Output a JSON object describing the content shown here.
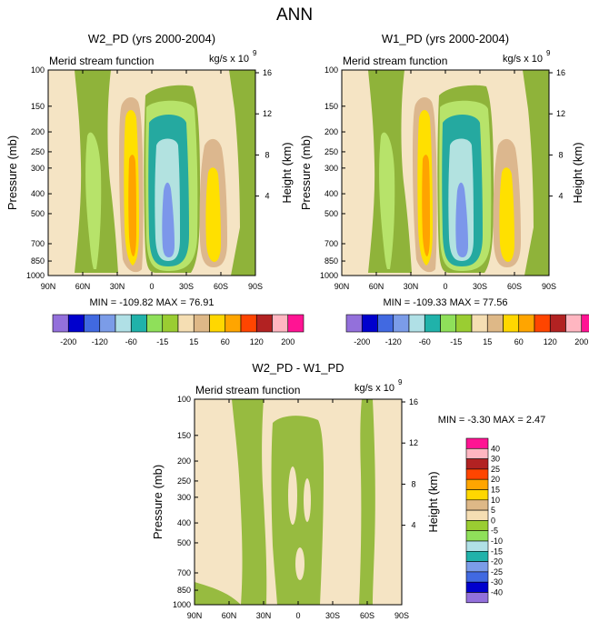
{
  "page_title": "ANN",
  "colors": {
    "bg": "#f5e4c4",
    "neg5": "#8fb33a",
    "neg15": "#b7e36a",
    "neg60": "#25a9a0",
    "neg120": "#b2e2e0",
    "neg200": "#7c97ea",
    "pos15": "#dcb78e",
    "pos60": "#ffe000",
    "pos120": "#ffa300"
  },
  "chart_data": [
    {
      "type": "contour",
      "title": "W2_PD (yrs 2000-2004)",
      "left_label": "Merid stream function",
      "units": "kg/s x 10",
      "units_exp": "9",
      "ylabel": "Pressure (mb)",
      "y2label": "Height (km)",
      "xticks": [
        "90N",
        "60N",
        "30N",
        "0",
        "30S",
        "60S",
        "90S"
      ],
      "pressure_ticks": [
        "100",
        "150",
        "200",
        "250",
        "300",
        "400",
        "500",
        "700",
        "850",
        "1000"
      ],
      "height_ticks": [
        "16",
        "12",
        "8",
        "4"
      ],
      "min": -109.82,
      "max": 76.91,
      "stats": "MIN = -109.82  MAX = 76.91"
    },
    {
      "type": "contour",
      "title": "W1_PD (yrs 2000-2004)",
      "left_label": "Merid stream function",
      "units": "kg/s x 10",
      "units_exp": "9",
      "ylabel": "Pressure (mb)",
      "y2label": "Height (km)",
      "xticks": [
        "90N",
        "60N",
        "30N",
        "0",
        "30S",
        "60S",
        "90S"
      ],
      "pressure_ticks": [
        "100",
        "150",
        "200",
        "250",
        "300",
        "400",
        "500",
        "700",
        "850",
        "1000"
      ],
      "height_ticks": [
        "16",
        "12",
        "8",
        "4"
      ],
      "min": -109.33,
      "max": 77.56,
      "stats": "MIN = -109.33  MAX = 77.56"
    },
    {
      "type": "contour",
      "title": "W2_PD - W1_PD",
      "left_label": "Merid stream function",
      "units": "kg/s x 10",
      "units_exp": "9",
      "ylabel": "Pressure (mb)",
      "y2label": "Height (km)",
      "xticks": [
        "90N",
        "60N",
        "30N",
        "0",
        "30S",
        "60S",
        "90S"
      ],
      "pressure_ticks": [
        "100",
        "150",
        "200",
        "250",
        "300",
        "400",
        "500",
        "700",
        "850",
        "1000"
      ],
      "height_ticks": [
        "16",
        "12",
        "8",
        "4"
      ],
      "min": -3.3,
      "max": 2.47,
      "stats": "MIN = -3.30  MAX = 2.47"
    }
  ],
  "colorbar_top": {
    "colors": [
      "#9370db",
      "#0000cd",
      "#4169e1",
      "#7b9ce8",
      "#b0e0e6",
      "#20b2aa",
      "#8fe05a",
      "#9acd32",
      "#f5deb3",
      "#deb887",
      "#ffd700",
      "#ffa500",
      "#ff4500",
      "#b22222",
      "#ffb6c1",
      "#ff1493"
    ],
    "labels": [
      "-200",
      "-120",
      "-60",
      "-15",
      "15",
      "60",
      "120",
      "200"
    ]
  },
  "colorbar_bottom": {
    "colors": [
      "#ff1493",
      "#ffb6c1",
      "#b22222",
      "#ff4500",
      "#ffa500",
      "#ffd700",
      "#deb887",
      "#f5deb3",
      "#9acd32",
      "#8fe05a",
      "#b0e0e6",
      "#20b2aa",
      "#7b9ce8",
      "#4169e1",
      "#0000cd",
      "#9370db"
    ],
    "labels": [
      "40",
      "30",
      "25",
      "20",
      "15",
      "10",
      "5",
      "0",
      "-5",
      "-10",
      "-15",
      "-20",
      "-25",
      "-30",
      "-40"
    ]
  }
}
